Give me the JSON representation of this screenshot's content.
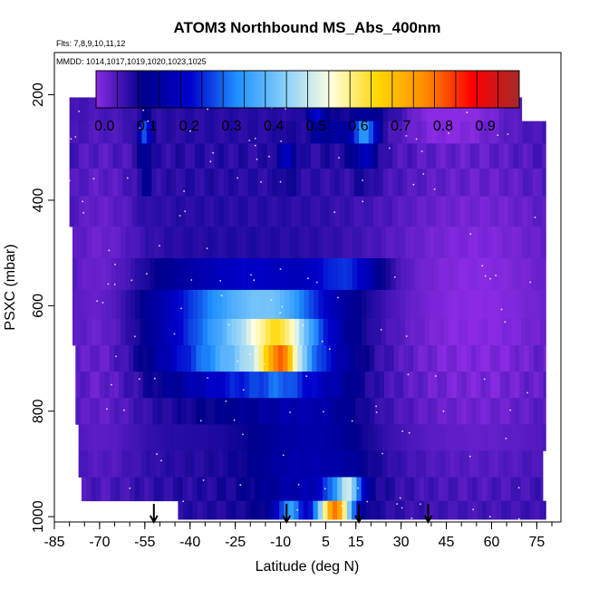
{
  "chart_data": {
    "type": "heatmap",
    "title": "ATOM3 Northbound MS_Abs_400nm",
    "annotations": [
      "Flts: 7,8,9,10,11,12",
      "MMDD: 1014,1017,1019,1020,1023,1025"
    ],
    "xlabel": "Latitude (deg N)",
    "ylabel": "PSXC (mbar)",
    "xlim": [
      -85,
      83
    ],
    "ylim": [
      1010,
      120
    ],
    "y_reversed": true,
    "x_ticks": [
      -85,
      -70,
      -55,
      -40,
      -25,
      -10,
      5,
      15,
      30,
      45,
      60,
      75
    ],
    "y_ticks": [
      200,
      400,
      600,
      800,
      1000
    ],
    "colorbar": {
      "placement": "top-inside",
      "range": [
        -0.02,
        0.98
      ],
      "ticks": [
        0.0,
        0.1,
        0.2,
        0.3,
        0.4,
        0.5,
        0.6,
        0.7,
        0.8,
        0.9
      ],
      "tick_labels": [
        "0.0",
        "0.1",
        "0.2",
        "0.3",
        "0.4",
        "0.5",
        "0.6",
        "0.7",
        "0.8",
        "0.9"
      ],
      "colors": [
        "#8a2be2",
        "#00008b",
        "#0000cd",
        "#1e90ff",
        "#87cefa",
        "#ffffe0",
        "#ffd700",
        "#ff8c00",
        "#ff0000",
        "#a52a2a"
      ]
    },
    "profile_markers_lat": [
      -52,
      -8,
      16,
      39
    ],
    "grid": false,
    "legend": "none",
    "levels_mbar": [
      180,
      230,
      270,
      315,
      365,
      420,
      480,
      540,
      600,
      650,
      700,
      750,
      800,
      850,
      900,
      950,
      990
    ],
    "lat_min_per_level": [
      -67,
      -80,
      -80,
      -80,
      -80,
      -80,
      -79,
      -79,
      -79,
      -79,
      -78,
      -78,
      -78,
      -77,
      -77,
      -76,
      -44
    ],
    "lat_max_per_level": [
      55,
      70,
      78,
      78,
      78,
      78,
      78,
      78,
      78,
      78,
      78,
      78,
      78,
      78,
      77,
      77,
      78
    ],
    "background_value": 0.06,
    "features": [
      {
        "lat": -20,
        "p": 680,
        "value": 0.42,
        "sigma_lat": 18,
        "sigma_p": 55
      },
      {
        "lat": -10,
        "p": 660,
        "value": 0.3,
        "sigma_lat": 8,
        "sigma_p": 35
      },
      {
        "lat": -10,
        "p": 700,
        "value": 0.36,
        "sigma_lat": 4,
        "sigma_p": 25
      },
      {
        "lat": -20,
        "p": 580,
        "value": 0.28,
        "sigma_lat": 20,
        "sigma_p": 35
      },
      {
        "lat": 0,
        "p": 780,
        "value": 0.12,
        "sigma_lat": 12,
        "sigma_p": 60
      },
      {
        "lat": 8,
        "p": 990,
        "value": 0.72,
        "sigma_lat": 4,
        "sigma_p": 22
      },
      {
        "lat": 13,
        "p": 945,
        "value": 0.38,
        "sigma_lat": 3,
        "sigma_p": 18
      },
      {
        "lat": -7,
        "p": 1000,
        "value": 0.32,
        "sigma_lat": 3,
        "sigma_p": 20
      },
      {
        "lat": 0,
        "p": 920,
        "value": 0.15,
        "sigma_lat": 14,
        "sigma_p": 70
      },
      {
        "lat": 12,
        "p": 540,
        "value": 0.22,
        "sigma_lat": 8,
        "sigma_p": 18
      },
      {
        "lat": -55,
        "p": 270,
        "value": 0.25,
        "sigma_lat": 1.5,
        "sigma_p": 22
      },
      {
        "lat": -55,
        "p": 340,
        "value": 0.12,
        "sigma_lat": 1.5,
        "sigma_p": 50
      },
      {
        "lat": -8,
        "p": 320,
        "value": 0.18,
        "sigma_lat": 2,
        "sigma_p": 25
      },
      {
        "lat": 2,
        "p": 230,
        "value": 0.2,
        "sigma_lat": 2,
        "sigma_p": 25
      },
      {
        "lat": 18,
        "p": 270,
        "value": 0.32,
        "sigma_lat": 3,
        "sigma_p": 22
      },
      {
        "lat": 18,
        "p": 320,
        "value": 0.15,
        "sigma_lat": 3,
        "sigma_p": 30
      },
      {
        "lat": 8,
        "p": 270,
        "value": 0.12,
        "sigma_lat": 4,
        "sigma_p": 25
      },
      {
        "lat": 55,
        "p": 600,
        "value": -0.02,
        "sigma_lat": 25,
        "sigma_p": 250
      },
      {
        "lat": 45,
        "p": 230,
        "value": -0.02,
        "sigma_lat": 12,
        "sigma_p": 40
      },
      {
        "lat": 25,
        "p": 220,
        "value": 0.1,
        "sigma_lat": 8,
        "sigma_p": 25
      },
      {
        "lat": -70,
        "p": 600,
        "value": 0.0,
        "sigma_lat": 10,
        "sigma_p": 300
      }
    ]
  }
}
